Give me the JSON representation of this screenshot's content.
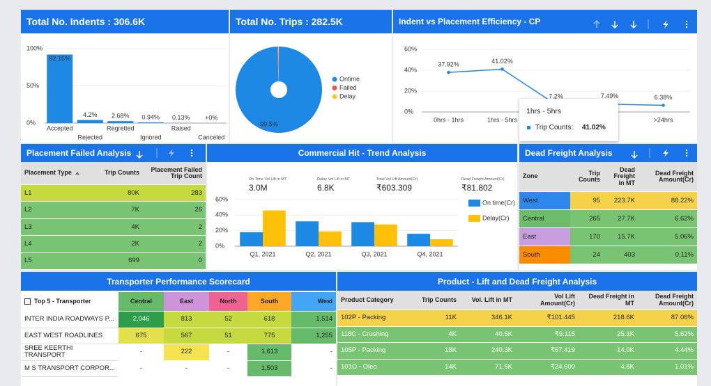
{
  "chart_data": [
    {
      "type": "bar",
      "title": "Total No. Indents : 306.6K",
      "categories": [
        "Accepted",
        "Rejected",
        "Regretted",
        "Ignored",
        "Raised",
        "Canceled"
      ],
      "values": [
        92.15,
        4.2,
        2.68,
        0.94,
        0.13,
        0
      ],
      "value_labels": [
        "92.15%",
        "4.2%",
        "2.68%",
        "0.94%",
        "0.13%",
        "+0%"
      ],
      "color": "#1e88e5",
      "ylim": [
        0,
        100
      ],
      "yticks": [
        {
          "value": 0,
          "label": "0%"
        },
        {
          "value": 50,
          "label": "50%"
        },
        {
          "value": 100,
          "label": "100%"
        }
      ]
    },
    {
      "type": "pie",
      "title": "Total No. Trips : 282.5K",
      "donut": true,
      "categories": [
        "Ontime",
        "Failed",
        "Delay"
      ],
      "values": [
        99.5,
        0.3,
        0.2
      ],
      "value_labels": [
        "99.5%",
        null,
        null
      ],
      "colors": [
        "#1e88e5",
        "#ef5350",
        "#ffca28"
      ]
    },
    {
      "type": "line",
      "title": "Indent vs Placement Efficiency - CP",
      "categories": [
        "0hrs - 1hrs",
        "1hrs - 5hrs",
        null,
        null,
        ">24hrs"
      ],
      "values": [
        37.92,
        41.02,
        7.2,
        7.49,
        6.38
      ],
      "value_labels": [
        "37.92%",
        "41.02%",
        "7.2%",
        "7.49%",
        "6.38%"
      ],
      "color": "#1e88e5",
      "ylim": [
        0,
        60
      ],
      "yticks": [
        {
          "value": 0,
          "label": "0%"
        },
        {
          "value": 20,
          "label": "20%"
        },
        {
          "value": 40,
          "label": "40%"
        },
        {
          "value": 60,
          "label": "60%"
        }
      ],
      "tooltip": {
        "title": "1hrs - 5hrs",
        "label": "Trip Counts:",
        "value": "41.02%"
      }
    },
    {
      "type": "bar",
      "title": "Commercial Hit - Trend Analysis",
      "kpis": [
        {
          "label": "On Time Vol Lift in MT",
          "value": "3.0M"
        },
        {
          "label": "Delay Vol Lift in MT",
          "value": "6.8K"
        },
        {
          "label": "Total Vol Lift Amount(Cr)",
          "value": "₹603.309"
        },
        {
          "label": "Dead Freight Amount(Cr)",
          "value": "₹81.802"
        }
      ],
      "categories": [
        "Q1, 2021",
        "Q2, 2021",
        "Q3, 2021",
        "Q4, 2021"
      ],
      "series": [
        {
          "name": "On time(Cr)",
          "color": "#1e88e5",
          "values": [
            18,
            32,
            31,
            16
          ]
        },
        {
          "name": "Delay(Cr)",
          "color": "#ffc107",
          "values": [
            46,
            19,
            28,
            9
          ]
        }
      ],
      "ylim": [
        0,
        60
      ],
      "yticks": [
        {
          "value": 0,
          "label": "0%"
        },
        {
          "value": 20,
          "label": "20%"
        },
        {
          "value": 40,
          "label": "40%"
        },
        {
          "value": 60,
          "label": "60%"
        }
      ]
    }
  ],
  "placement_failed": {
    "title": "Placement Failed Analysis",
    "columns": [
      "Placement Type",
      "Trip Counts",
      "Placement Failed Trip Count"
    ],
    "rows": [
      [
        "L1",
        "80K",
        "283"
      ],
      [
        "L2",
        "7K",
        "26"
      ],
      [
        "L3",
        "4K",
        "2"
      ],
      [
        "L4",
        "2K",
        "2"
      ],
      [
        "L5",
        "699",
        "0"
      ]
    ]
  },
  "dead_freight": {
    "title": "Dead Freight Analysis",
    "columns": [
      "Zone",
      "Trip Counts",
      "Dead Freight in MT",
      "Dead Freight Amount(Cr)"
    ],
    "rows": [
      [
        "West",
        "95",
        "223.7K",
        "88.22%"
      ],
      [
        "Central",
        "265",
        "27.7K",
        "6.62%"
      ],
      [
        "East",
        "170",
        "15.7K",
        "5.06%"
      ],
      [
        "South",
        "24",
        "403",
        "0.11%"
      ]
    ]
  },
  "scorecard": {
    "title": "Transporter Performance Scorecard",
    "columns": [
      "Top 5 - Transporter",
      "Central",
      "East",
      "North",
      "South",
      "West"
    ],
    "rows": [
      [
        "INTER INDIA ROADWAYS P...",
        "2,046",
        "813",
        "52",
        "618",
        "1,514"
      ],
      [
        "EAST WEST ROADLINES",
        "675",
        "567",
        "51",
        "775",
        "1,255"
      ],
      [
        "SREE KEERTHI TRANSPORT",
        "-",
        "222",
        "-",
        "1,613",
        "-"
      ],
      [
        "M S TRANSPORT CORPOR...",
        "-",
        "-",
        "-",
        "1,503",
        "-"
      ]
    ]
  },
  "product": {
    "title": "Product - Lift and Dead Freight Analysis",
    "columns": [
      "Product Category",
      "Trip Counts",
      "Vol. Lift in MT",
      "Vol Lift Amount(Cr)",
      "Dead Freight in MT",
      "Dead Freight Amount(Cr)"
    ],
    "rows": [
      [
        "102P - Packing",
        "11K",
        "346.1K",
        "₹101.445",
        "218.6K",
        "87.06%"
      ],
      [
        "118C - Crushing",
        "4K",
        "40.5K",
        "₹9.115",
        "25.1K",
        "5.62%"
      ],
      [
        "105P - Packing",
        "18K",
        "240.3K",
        "₹57.419",
        "14.0K",
        "4.44%"
      ],
      [
        "101O - Oleo",
        "14K",
        "71.6K",
        "₹24.600",
        "4.8K",
        "1.01%"
      ]
    ]
  }
}
